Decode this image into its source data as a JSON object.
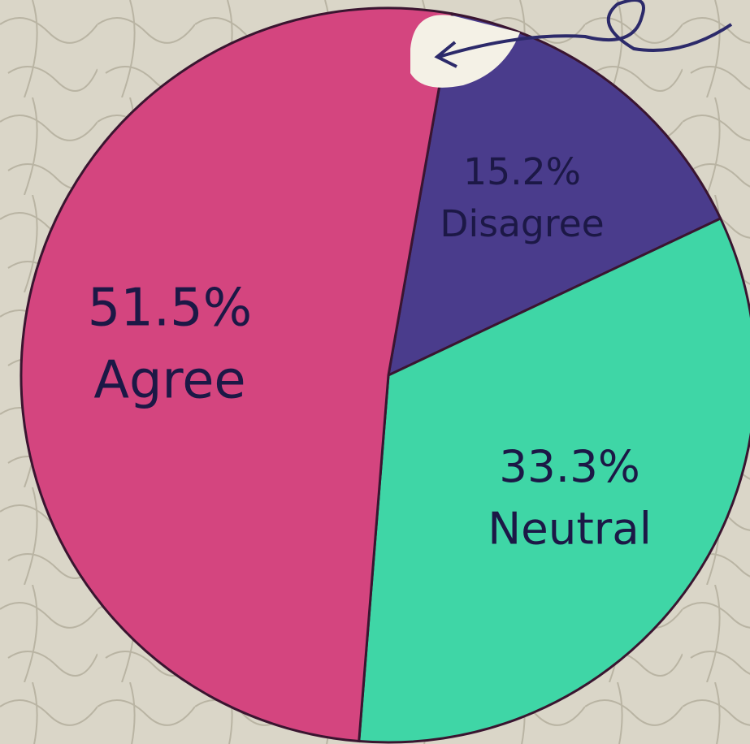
{
  "chart_data": {
    "type": "pie",
    "categories": [
      "Disagree",
      "Neutral",
      "Agree"
    ],
    "values": [
      15.2,
      33.3,
      51.5
    ],
    "value_labels": [
      "15.2%",
      "33.3%",
      "51.5%"
    ],
    "colors": [
      "#4a3c8c",
      "#3fd6a6",
      "#d4457f"
    ]
  }
}
